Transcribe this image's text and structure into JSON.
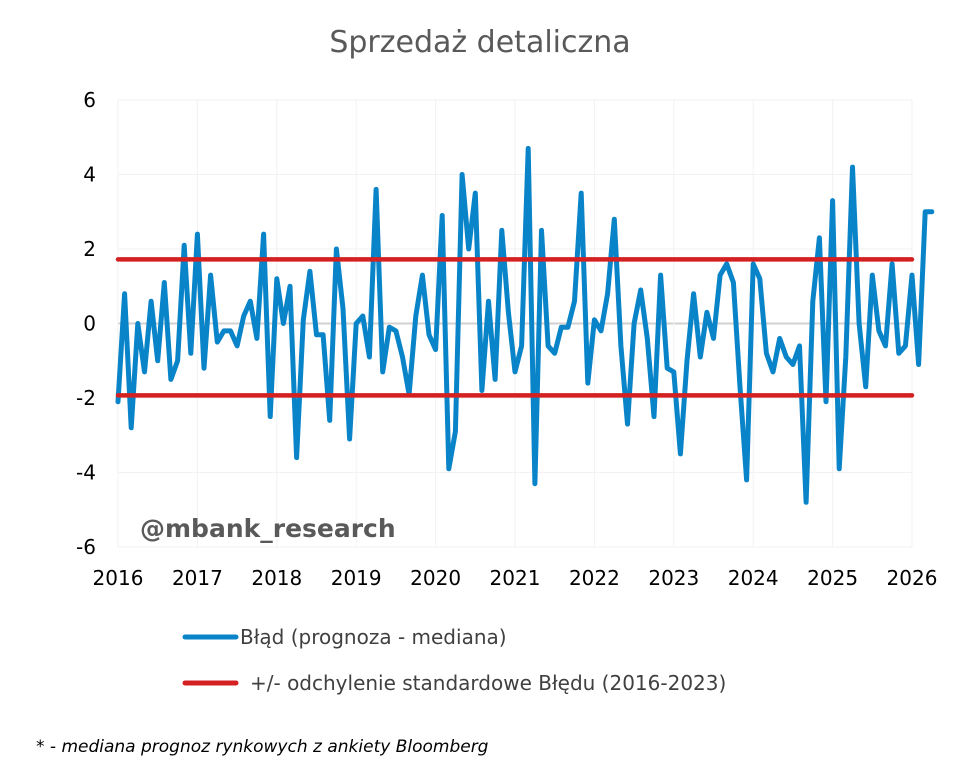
{
  "chart_data": {
    "type": "line",
    "title": "Sprzedaż detaliczna",
    "xlabel": "",
    "ylabel": "",
    "ylim": [
      -6,
      6
    ],
    "yticks": [
      "6",
      "4",
      "2",
      "0",
      "-2",
      "-4",
      "-6"
    ],
    "xticks": [
      "2016",
      "2017",
      "2018",
      "2019",
      "2020",
      "2021",
      "2022",
      "2023",
      "2024",
      "2025",
      "2026"
    ],
    "grid": true,
    "legend_position": "bottom",
    "series": [
      {
        "name": "Błąd (prognoza - mediana)",
        "color": "#0a84c8",
        "x": [
          "2016-01",
          "2016-02",
          "2016-03",
          "2016-04",
          "2016-05",
          "2016-06",
          "2016-07",
          "2016-08",
          "2016-09",
          "2016-10",
          "2016-11",
          "2016-12",
          "2017-01",
          "2017-02",
          "2017-03",
          "2017-04",
          "2017-05",
          "2017-06",
          "2017-07",
          "2017-08",
          "2017-09",
          "2017-10",
          "2017-11",
          "2017-12",
          "2018-01",
          "2018-02",
          "2018-03",
          "2018-04",
          "2018-05",
          "2018-06",
          "2018-07",
          "2018-08",
          "2018-09",
          "2018-10",
          "2018-11",
          "2018-12",
          "2019-01",
          "2019-02",
          "2019-03",
          "2019-04",
          "2019-05",
          "2019-06",
          "2019-07",
          "2019-08",
          "2019-09",
          "2019-10",
          "2019-11",
          "2019-12",
          "2020-01",
          "2020-02",
          "2020-03",
          "2020-04",
          "2020-05",
          "2020-06",
          "2020-07",
          "2020-08",
          "2020-09",
          "2020-10",
          "2020-11",
          "2020-12",
          "2021-01",
          "2021-02",
          "2021-03",
          "2021-04",
          "2021-05",
          "2021-06",
          "2021-07",
          "2021-08",
          "2021-09",
          "2021-10",
          "2021-11",
          "2021-12",
          "2022-01",
          "2022-02",
          "2022-03",
          "2022-04",
          "2022-05",
          "2022-06",
          "2022-07",
          "2022-08",
          "2022-09",
          "2022-10",
          "2022-11",
          "2022-12",
          "2023-01",
          "2023-02",
          "2023-03",
          "2023-04",
          "2023-05",
          "2023-06",
          "2023-07",
          "2023-08",
          "2023-09",
          "2023-10",
          "2023-11",
          "2023-12",
          "2024-01",
          "2024-02",
          "2024-03",
          "2024-04",
          "2024-05",
          "2024-06",
          "2024-07",
          "2024-08",
          "2024-09",
          "2024-10",
          "2024-11",
          "2024-12",
          "2025-01",
          "2025-02",
          "2025-03",
          "2025-04",
          "2025-05",
          "2025-06",
          "2025-07",
          "2025-08",
          "2025-09",
          "2025-10",
          "2025-11",
          "2025-12",
          "2026-01",
          "2026-02",
          "2026-03",
          "2026-04"
        ],
        "values": [
          -2.1,
          0.8,
          -2.8,
          0.0,
          -1.3,
          0.6,
          -1.0,
          1.1,
          -1.5,
          -1.0,
          2.1,
          -0.8,
          2.4,
          -1.2,
          1.3,
          -0.5,
          -0.2,
          -0.2,
          -0.6,
          0.2,
          0.6,
          -0.4,
          2.4,
          -2.5,
          1.2,
          0.0,
          1.0,
          -3.6,
          0.1,
          1.4,
          -0.3,
          -0.3,
          -2.6,
          2.0,
          0.4,
          -3.1,
          0.0,
          0.2,
          -0.9,
          3.6,
          -1.3,
          -0.1,
          -0.2,
          -0.9,
          -1.9,
          0.2,
          1.3,
          -0.3,
          -0.7,
          2.9,
          -3.9,
          -2.9,
          4.0,
          2.0,
          3.5,
          -1.8,
          0.6,
          -1.5,
          2.5,
          0.3,
          -1.3,
          -0.6,
          4.7,
          -4.3,
          2.5,
          -0.6,
          -0.8,
          -0.1,
          -0.1,
          0.6,
          3.5,
          -1.6,
          0.1,
          -0.2,
          0.8,
          2.8,
          -0.6,
          -2.7,
          0.0,
          0.9,
          -0.4,
          -2.5,
          1.3,
          -1.2,
          -1.3,
          -3.5,
          -1.0,
          0.8,
          -0.9,
          0.3,
          -0.4,
          1.3,
          1.6,
          1.1,
          -1.7,
          -4.2,
          1.6,
          1.2,
          -0.8,
          -1.3,
          -0.4,
          -0.9,
          -1.1,
          -0.6,
          -4.8,
          0.6,
          2.3,
          -2.1,
          3.3,
          -3.9,
          -0.9,
          4.2,
          0.0,
          -1.7,
          1.3,
          -0.2,
          -0.6,
          1.6,
          -0.8,
          -0.6,
          1.3,
          -1.1,
          3.0,
          3.0
        ]
      },
      {
        "name": "+/- odchylenie standardowe Błędu (2016-2023)",
        "color": "#d42020",
        "values": [
          1.72,
          -1.93
        ]
      }
    ],
    "annotation": "@mbank_research"
  },
  "footnote": "* - mediana prognoz rynkowych z ankiety Bloomberg"
}
